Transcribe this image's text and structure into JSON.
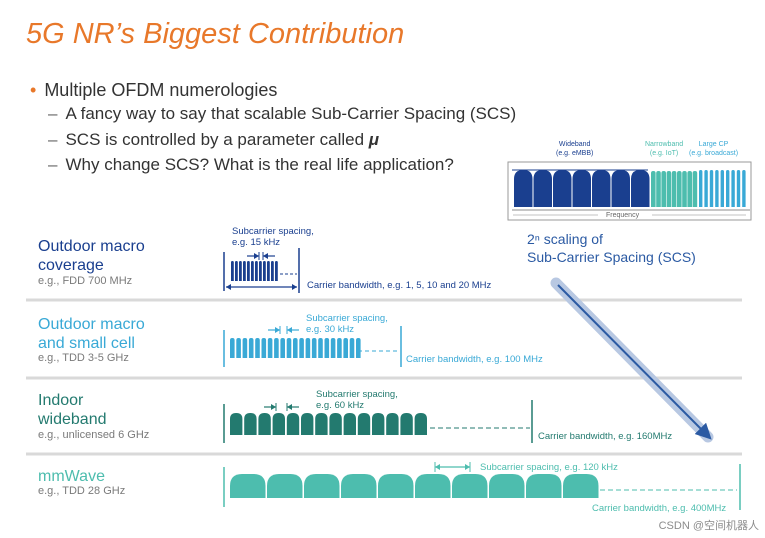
{
  "title": "5G NR’s Biggest Contribution",
  "bullet": "Multiple OFDM numerologies",
  "sub_bullets": {
    "b1": "A fancy way to say that scalable Sub-Carrier Spacing (SCS)",
    "b2_prefix": "SCS is controlled by a parameter called ",
    "b2_symbol": "μ",
    "b3": "Why change SCS? What is the real life application?"
  },
  "inset": {
    "wideband": [
      "Wideband",
      "(e.g. eMBB)"
    ],
    "narrowband": [
      "Narrowband",
      "(e.g. IoT)"
    ],
    "large_cp": [
      "Large CP",
      "(e.g. broadcast)"
    ],
    "frequency": "Frequency"
  },
  "scaling": [
    "2ⁿ scaling of",
    "Sub-Carrier Spacing (SCS)"
  ],
  "rows": [
    {
      "title": [
        "Outdoor macro",
        "coverage"
      ],
      "example": "e.g., FDD 700 MHz",
      "scs_label": [
        "Subcarrier spacing,",
        "e.g. 15 kHz"
      ],
      "bw_label": "Carrier bandwidth, e.g. 1, 5, 10 and 20 MHz",
      "color": "#1a3f8f"
    },
    {
      "title": [
        "Outdoor macro",
        "and small cell"
      ],
      "example": "e.g., TDD 3-5 GHz",
      "scs_label": [
        "Subcarrier spacing,",
        "e.g. 30 kHz"
      ],
      "bw_label": "Carrier bandwidth, e.g. 100 MHz",
      "color": "#39a9d6"
    },
    {
      "title": [
        "Indoor",
        "wideband"
      ],
      "example": "e.g., unlicensed 6 GHz",
      "scs_label": [
        "Subcarrier spacing,",
        "e.g. 60 kHz"
      ],
      "bw_label": "Carrier bandwidth, e.g. 160MHz",
      "color": "#237a6f"
    },
    {
      "title": [
        "mmWave"
      ],
      "example": "e.g., TDD 28 GHz",
      "scs_label": [
        "Subcarrier spacing, e.g. 120 kHz"
      ],
      "bw_label": "Carrier bandwidth, e.g. 400MHz",
      "color": "#4dbdae"
    }
  ],
  "colors": {
    "title": "#e8782a",
    "macro": "#1a3f8f",
    "small_cell": "#39a9d6",
    "indoor": "#237a6f",
    "mmwave": "#4dbdae",
    "arrow": "#2b5aa3"
  },
  "watermark": "CSDN @空间机器人"
}
